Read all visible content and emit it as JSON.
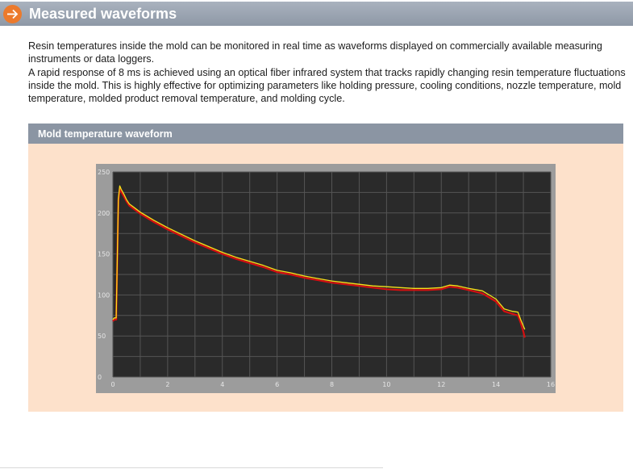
{
  "header": {
    "title": "Measured waveforms"
  },
  "intro": {
    "paragraph1": "Resin temperatures inside the mold can be monitored in real time as waveforms displayed on commercially available measuring instruments or data loggers.",
    "paragraph2": "A rapid response of 8 ms is achieved using an optical fiber infrared system that tracks rapidly changing resin temperature fluctuations inside the mold. This is highly effective for optimizing parameters like holding pressure, cooling conditions, nozzle temperature, mold temperature, molded product removal temperature, and molding cycle."
  },
  "section": {
    "title": "Mold temperature waveform"
  },
  "colors": {
    "header_bg": "#8e98a6",
    "accent_orange": "#ec7a2c",
    "panel_bg": "#fde1cb",
    "plot_bg": "#2a2a2a",
    "series_yellow": "#f5e21a",
    "series_red": "#d40f10"
  },
  "chart_data": {
    "type": "line",
    "title": "",
    "xlabel": "",
    "ylabel": "",
    "xlim": [
      0,
      16
    ],
    "ylim": [
      0,
      250
    ],
    "xticks": [
      0,
      2,
      4,
      6,
      8,
      10,
      12,
      14,
      16
    ],
    "yticks": [
      0,
      50,
      100,
      150,
      200,
      250
    ],
    "grid": true,
    "series": [
      {
        "color": "#d40f10",
        "x": [
          0.0,
          0.05,
          0.12,
          0.2,
          0.25,
          0.3,
          0.4,
          0.5,
          0.6,
          0.8,
          1.0,
          1.5,
          2.0,
          2.5,
          3.0,
          3.5,
          4.0,
          4.5,
          5.0,
          5.5,
          6.0,
          6.5,
          7.0,
          7.5,
          8.0,
          8.5,
          9.0,
          9.5,
          10.0,
          10.5,
          11.0,
          11.5,
          12.0,
          12.3,
          12.6,
          13.0,
          13.5,
          14.0,
          14.3,
          14.6,
          14.8,
          14.9,
          15.0,
          15.05
        ],
        "y": [
          68,
          70,
          70,
          215,
          230,
          226,
          220,
          214,
          209,
          204,
          199,
          189,
          180,
          172,
          164,
          157,
          150,
          144,
          139,
          134,
          128,
          125,
          121,
          118,
          115,
          113,
          111,
          109,
          107,
          106,
          106,
          106,
          107,
          110,
          109,
          106,
          102,
          92,
          80,
          77,
          75,
          66,
          55,
          48
        ]
      },
      {
        "color": "#f5e21a",
        "x": [
          0.0,
          0.05,
          0.12,
          0.2,
          0.25,
          0.3,
          0.4,
          0.5,
          0.6,
          0.8,
          1.0,
          1.5,
          2.0,
          2.5,
          3.0,
          3.5,
          4.0,
          4.5,
          5.0,
          5.5,
          6.0,
          6.5,
          7.0,
          7.5,
          8.0,
          8.5,
          9.0,
          9.5,
          10.0,
          10.5,
          11.0,
          11.5,
          12.0,
          12.3,
          12.6,
          13.0,
          13.5,
          14.0,
          14.3,
          14.6,
          14.8,
          14.9,
          15.0,
          15.05
        ],
        "y": [
          70,
          72,
          72,
          217,
          233,
          229,
          223,
          216,
          211,
          206,
          201,
          191,
          182,
          174,
          166,
          159,
          152,
          146,
          141,
          136,
          130,
          127,
          123,
          120,
          117,
          115,
          113,
          111,
          110,
          109,
          108,
          108,
          109,
          112,
          111,
          108,
          105,
          95,
          83,
          80,
          79,
          70,
          62,
          58
        ]
      }
    ]
  }
}
